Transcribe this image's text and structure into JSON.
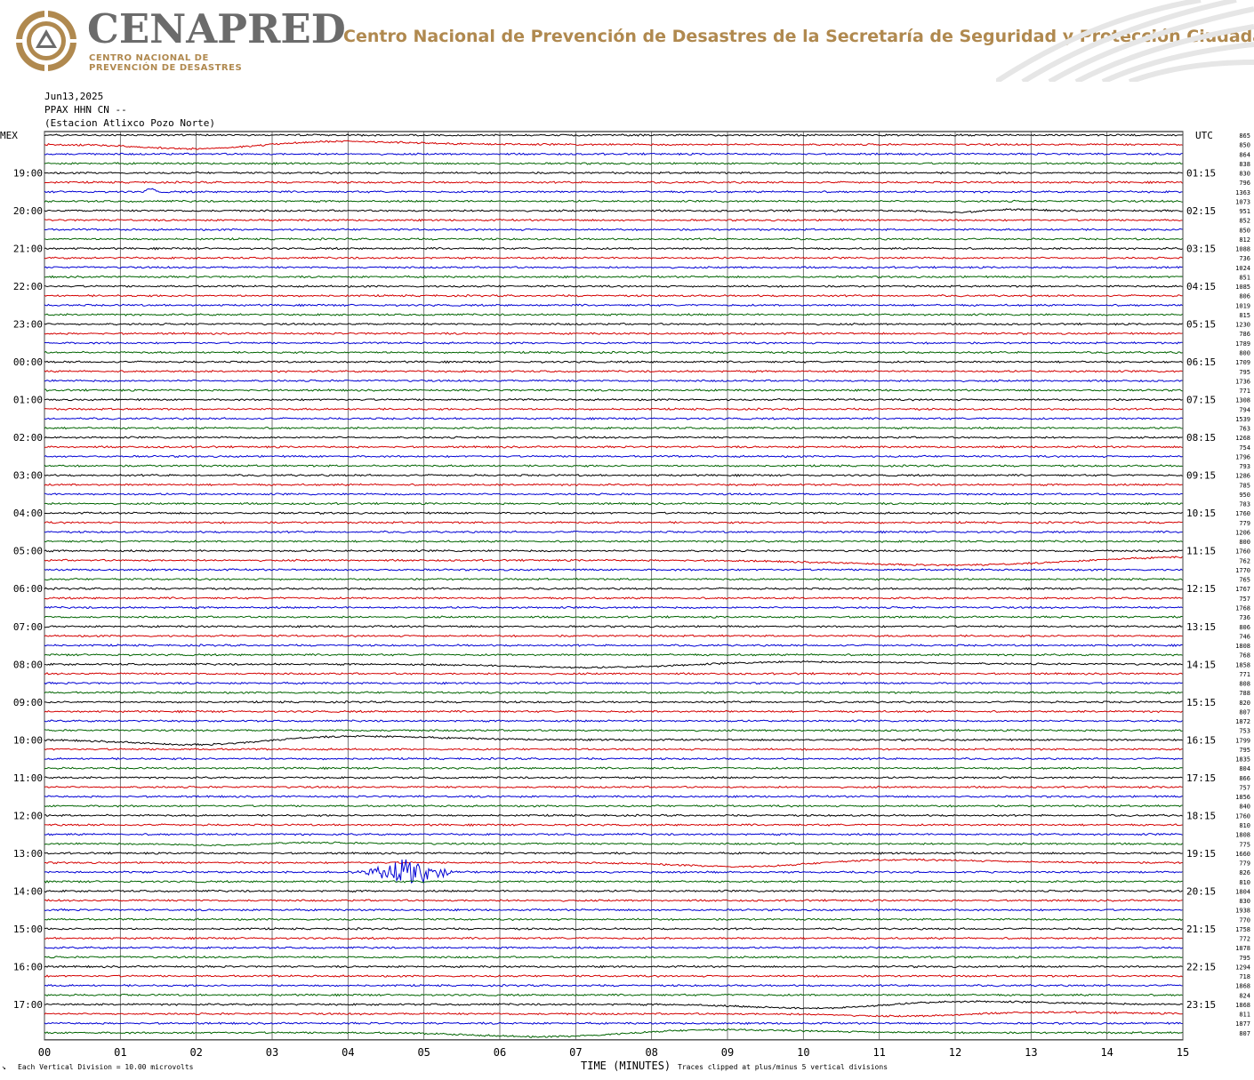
{
  "header": {
    "brand": "CENAPRED",
    "brand_sub_1": "CENTRO NACIONAL DE",
    "brand_sub_2": "PREVENCIÓN DE DESASTRES",
    "agency": "Centro Nacional de Prevención de Desastres de la Secretaría de Seguridad y Protección Ciudadana",
    "logo_icon": "cenapred-seal-icon",
    "colors": {
      "brand_gray": "#6b6b6b",
      "accent_gold": "#b0894f"
    }
  },
  "meta": {
    "date": "Jun13,2025",
    "channel": "PPAX HHN CN --",
    "station": "(Estacion Atlixco Pozo Norte)"
  },
  "chart_data": {
    "type": "line",
    "description_kind": "helicorder",
    "left_axis_label": "MEX",
    "right_axis_label": "UTC",
    "xlabel": "TIME (MINUTES)",
    "x_ticks": [
      "00",
      "01",
      "02",
      "03",
      "04",
      "05",
      "06",
      "07",
      "08",
      "09",
      "10",
      "11",
      "12",
      "13",
      "14",
      "15"
    ],
    "xlim": [
      0,
      15
    ],
    "minutes_per_line": 15,
    "trace_count": 96,
    "trace_colors": [
      "#000000",
      "#d40000",
      "#0000d4",
      "#006400"
    ],
    "left_hour_labels": [
      "19:00",
      "20:00",
      "21:00",
      "22:00",
      "23:00",
      "00:00",
      "01:00",
      "02:00",
      "03:00",
      "04:00",
      "05:00",
      "06:00",
      "07:00",
      "08:00",
      "09:00",
      "10:00",
      "11:00",
      "12:00",
      "13:00",
      "14:00",
      "15:00",
      "16:00",
      "17:00"
    ],
    "right_hour_labels": [
      "01:15",
      "02:15",
      "03:15",
      "04:15",
      "05:15",
      "06:15",
      "07:15",
      "08:15",
      "09:15",
      "10:15",
      "11:15",
      "12:15",
      "13:15",
      "14:15",
      "15:15",
      "16:15",
      "17:15",
      "18:15",
      "19:15",
      "20:15",
      "21:15",
      "22:15",
      "23:15"
    ],
    "right_values": [
      "865",
      "850",
      "864",
      "838",
      "830",
      "796",
      "1363",
      "1073",
      "951",
      "852",
      "850",
      "812",
      "1088",
      "736",
      "1024",
      "851",
      "1085",
      "806",
      "1019",
      "815",
      "1230",
      "786",
      "1789",
      "800",
      "1709",
      "795",
      "1736",
      "771",
      "1308",
      "794",
      "1539",
      "763",
      "1268",
      "754",
      "1796",
      "793",
      "1286",
      "785",
      "950",
      "783",
      "1760",
      "779",
      "1206",
      "800",
      "1760",
      "762",
      "1770",
      "765",
      "1767",
      "757",
      "1768",
      "736",
      "806",
      "746",
      "1808",
      "768",
      "1858",
      "771",
      "808",
      "788",
      "820",
      "807",
      "1872",
      "753",
      "1799",
      "795",
      "1835",
      "804",
      "866",
      "757",
      "1856",
      "840",
      "1760",
      "810",
      "1808",
      "775",
      "1660",
      "779",
      "826",
      "810",
      "1804",
      "830",
      "1938",
      "770",
      "1758",
      "772",
      "1878",
      "795",
      "1294",
      "718",
      "1868",
      "824",
      "1868",
      "811",
      "1877",
      "807"
    ],
    "events": [
      {
        "trace": 1,
        "minute": 2.2,
        "amplitude": 1.3,
        "width": 0.8,
        "kind": "long-period"
      },
      {
        "trace": 6,
        "minute": 1.4,
        "amplitude": 0.5,
        "width": 0.5,
        "kind": "spike"
      },
      {
        "trace": 8,
        "minute": 12.1,
        "amplitude": 0.5,
        "width": 0.3,
        "kind": "long-period"
      },
      {
        "trace": 45,
        "minute": 12.3,
        "amplitude": 1.5,
        "width": 1.5,
        "kind": "long-period"
      },
      {
        "trace": 56,
        "minute": 7.5,
        "amplitude": 1.0,
        "width": 1.2,
        "kind": "long-period"
      },
      {
        "trace": 64,
        "minute": 2.2,
        "amplitude": 1.5,
        "width": 0.9,
        "kind": "long-period"
      },
      {
        "trace": 75,
        "minute": 2.4,
        "amplitude": 0.5,
        "width": 0.5,
        "kind": "long-period"
      },
      {
        "trace": 77,
        "minute": 9.4,
        "amplitude": 1.2,
        "width": 0.9,
        "kind": "long-period"
      },
      {
        "trace": 78,
        "minute": 4.8,
        "amplitude": 2.6,
        "width": 0.3,
        "kind": "burst"
      },
      {
        "trace": 92,
        "minute": 10.3,
        "amplitude": 1.2,
        "width": 0.9,
        "kind": "long-period"
      },
      {
        "trace": 93,
        "minute": 11.5,
        "amplitude": 0.7,
        "width": 0.8,
        "kind": "long-period"
      },
      {
        "trace": 95,
        "minute": 6.8,
        "amplitude": 1.2,
        "width": 1.0,
        "kind": "long-period"
      }
    ]
  },
  "footer": {
    "left_note": "Each Vertical Division =   10.00 microvolts",
    "right_note": "Traces clipped at plus/minus 5 vertical divisions",
    "corner_mark": "↘"
  }
}
